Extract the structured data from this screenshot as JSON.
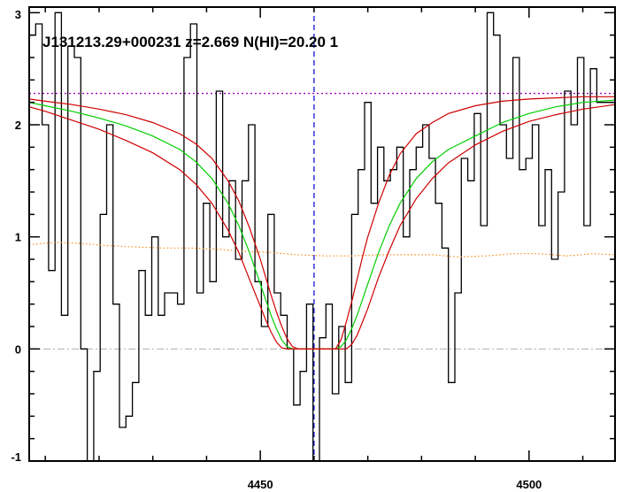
{
  "chart_data": {
    "type": "line",
    "title": "J131213.29+000231 z=2.669 N(HI)=20.20 1",
    "xlabel": "",
    "ylabel": "",
    "xlim": [
      4407,
      4516
    ],
    "ylim": [
      -1,
      3.05
    ],
    "grid": false,
    "x_ticks": [
      4450,
      4500
    ],
    "y_ticks": [
      -1,
      0,
      1,
      2,
      3
    ],
    "x_tick_labels": [
      "4450",
      "4500"
    ],
    "y_tick_labels": [
      "-1",
      "0",
      "1",
      "2",
      "3"
    ],
    "reference_lines": {
      "continuum_level": 2.28,
      "zero_level": 0,
      "line_center_x": 4460
    },
    "series": [
      {
        "kind": "step",
        "color": "#000000",
        "x": [
          4407,
          4408.2,
          4409.4,
          4410.6,
          4411.8,
          4413,
          4414.2,
          4415.4,
          4416.6,
          4417.8,
          4419,
          4420.2,
          4421.4,
          4422.6,
          4423.8,
          4425,
          4426.2,
          4427.4,
          4428.6,
          4429.8,
          4431,
          4432.2,
          4433.4,
          4434.6,
          4435.8,
          4437,
          4438.2,
          4439.4,
          4440.6,
          4441.8,
          4443,
          4444.2,
          4445.4,
          4446.6,
          4447.8,
          4449,
          4450.2,
          4451.4,
          4452.6,
          4453.8,
          4455,
          4456.2,
          4457.4,
          4458.6,
          4459.8,
          4461,
          4462.2,
          4463.4,
          4464.6,
          4465.8,
          4467,
          4468.2,
          4469.4,
          4470.6,
          4471.8,
          4473,
          4474.2,
          4475.4,
          4476.6,
          4477.8,
          4479,
          4480.2,
          4481.4,
          4482.6,
          4483.8,
          4485,
          4486.2,
          4487.4,
          4488.6,
          4489.8,
          4491,
          4492.2,
          4493.4,
          4494.6,
          4495.8,
          4497,
          4498.2,
          4499.4,
          4500.6,
          4501.8,
          4503,
          4504.2,
          4505.4,
          4506.6,
          4507.8,
          4509,
          4510.2,
          4511.4,
          4512.6,
          4513.8,
          4515
        ],
        "y": [
          2.8,
          2.9,
          2.0,
          0.7,
          3.0,
          0.3,
          2.7,
          2.6,
          0.0,
          -1.1,
          -0.2,
          1.2,
          2.0,
          0.4,
          -0.7,
          -0.6,
          -0.3,
          0.7,
          0.3,
          1.0,
          0.3,
          0.5,
          0.5,
          0.4,
          2.6,
          2.9,
          0.5,
          1.3,
          0.6,
          2.3,
          1.0,
          1.5,
          0.8,
          1.5,
          2.0,
          0.6,
          0.2,
          1.2,
          0.5,
          0.3,
          0.0,
          -0.5,
          -0.2,
          0.4,
          -1.2,
          0.1,
          0.4,
          -0.4,
          0.2,
          -0.3,
          1.2,
          1.6,
          2.2,
          1.3,
          1.8,
          1.5,
          1.6,
          1.8,
          1.0,
          1.6,
          1.8,
          2.0,
          1.7,
          1.3,
          0.9,
          -0.3,
          0.5,
          1.7,
          1.5,
          2.1,
          1.1,
          3.0,
          2.8,
          2.0,
          1.7,
          2.6,
          1.6,
          1.7,
          2.0,
          1.1,
          1.6,
          0.8,
          1.4,
          2.3,
          2.0,
          2.6,
          1.1,
          2.5,
          2.2,
          2.2,
          2.2
        ]
      },
      {
        "kind": "line",
        "color": "#ff8c1a",
        "dashed": true,
        "x": [
          4407,
          4412,
          4417,
          4422,
          4427,
          4432,
          4437,
          4442,
          4447,
          4452,
          4457,
          4462,
          4467,
          4472,
          4477,
          4482,
          4487,
          4492,
          4497,
          4502,
          4507,
          4512,
          4516
        ],
        "y": [
          0.93,
          0.95,
          0.94,
          0.92,
          0.91,
          0.9,
          0.9,
          0.89,
          0.87,
          0.86,
          0.84,
          0.83,
          0.83,
          0.84,
          0.84,
          0.84,
          0.82,
          0.83,
          0.85,
          0.85,
          0.83,
          0.85,
          0.84
        ]
      },
      {
        "kind": "line",
        "color": "#00d000",
        "x": [
          4407,
          4410,
          4415,
          4420,
          4425,
          4430,
          4435,
          4438,
          4441,
          4444,
          4446,
          4448,
          4450,
          4451,
          4452,
          4453,
          4454,
          4455,
          4456,
          4457,
          4458,
          4459,
          4460,
          4461,
          4462,
          4463,
          4464,
          4465,
          4466,
          4467,
          4468,
          4469,
          4470,
          4472,
          4474,
          4476,
          4479,
          4482,
          4485,
          4490,
          4495,
          4500,
          4505,
          4510,
          4516
        ],
        "y": [
          2.2,
          2.17,
          2.12,
          2.06,
          1.99,
          1.9,
          1.78,
          1.67,
          1.52,
          1.3,
          1.1,
          0.86,
          0.58,
          0.44,
          0.3,
          0.18,
          0.08,
          0.02,
          0,
          0,
          0,
          0,
          0,
          0,
          0,
          0,
          0,
          0.02,
          0.08,
          0.18,
          0.3,
          0.44,
          0.58,
          0.86,
          1.1,
          1.3,
          1.52,
          1.67,
          1.78,
          1.9,
          2.02,
          2.1,
          2.16,
          2.2,
          2.22
        ]
      },
      {
        "kind": "line",
        "color": "#d00000",
        "x": [
          4407,
          4410,
          4415,
          4420,
          4425,
          4430,
          4435,
          4438,
          4441,
          4444,
          4446,
          4448,
          4450,
          4451,
          4452,
          4453,
          4454,
          4455,
          4456,
          4457,
          4458,
          4459,
          4460,
          4461,
          4462,
          4463,
          4464,
          4465,
          4466,
          4467,
          4468,
          4469,
          4470,
          4472,
          4474,
          4476,
          4479,
          4482,
          4485,
          4490,
          4495,
          4500,
          4505,
          4510,
          4516
        ],
        "y": [
          2.23,
          2.21,
          2.18,
          2.14,
          2.09,
          2.02,
          1.92,
          1.83,
          1.7,
          1.5,
          1.32,
          1.08,
          0.8,
          0.64,
          0.48,
          0.33,
          0.2,
          0.09,
          0.02,
          0,
          0,
          0,
          0,
          0,
          0,
          0,
          0,
          0.08,
          0.24,
          0.42,
          0.62,
          0.82,
          1.0,
          1.3,
          1.55,
          1.74,
          1.92,
          2.02,
          2.1,
          2.17,
          2.21,
          2.23,
          2.24,
          2.25,
          2.25
        ]
      },
      {
        "kind": "line",
        "color": "#d00000",
        "x": [
          4407,
          4410,
          4415,
          4420,
          4425,
          4430,
          4435,
          4438,
          4441,
          4444,
          4446,
          4448,
          4450,
          4451,
          4452,
          4453,
          4454,
          4455,
          4456,
          4457,
          4458,
          4459,
          4460,
          4461,
          4462,
          4463,
          4464,
          4465,
          4466,
          4467,
          4468,
          4469,
          4470,
          4472,
          4474,
          4476,
          4479,
          4482,
          4485,
          4490,
          4495,
          4500,
          4505,
          4510,
          4516
        ],
        "y": [
          2.16,
          2.12,
          2.04,
          1.96,
          1.86,
          1.75,
          1.6,
          1.47,
          1.3,
          1.06,
          0.86,
          0.62,
          0.38,
          0.26,
          0.15,
          0.06,
          0.01,
          0,
          0,
          0,
          0,
          0,
          0,
          0,
          0,
          0,
          0,
          0,
          0,
          0.04,
          0.12,
          0.24,
          0.36,
          0.64,
          0.88,
          1.1,
          1.34,
          1.52,
          1.66,
          1.82,
          1.94,
          2.03,
          2.09,
          2.14,
          2.18
        ]
      }
    ]
  }
}
